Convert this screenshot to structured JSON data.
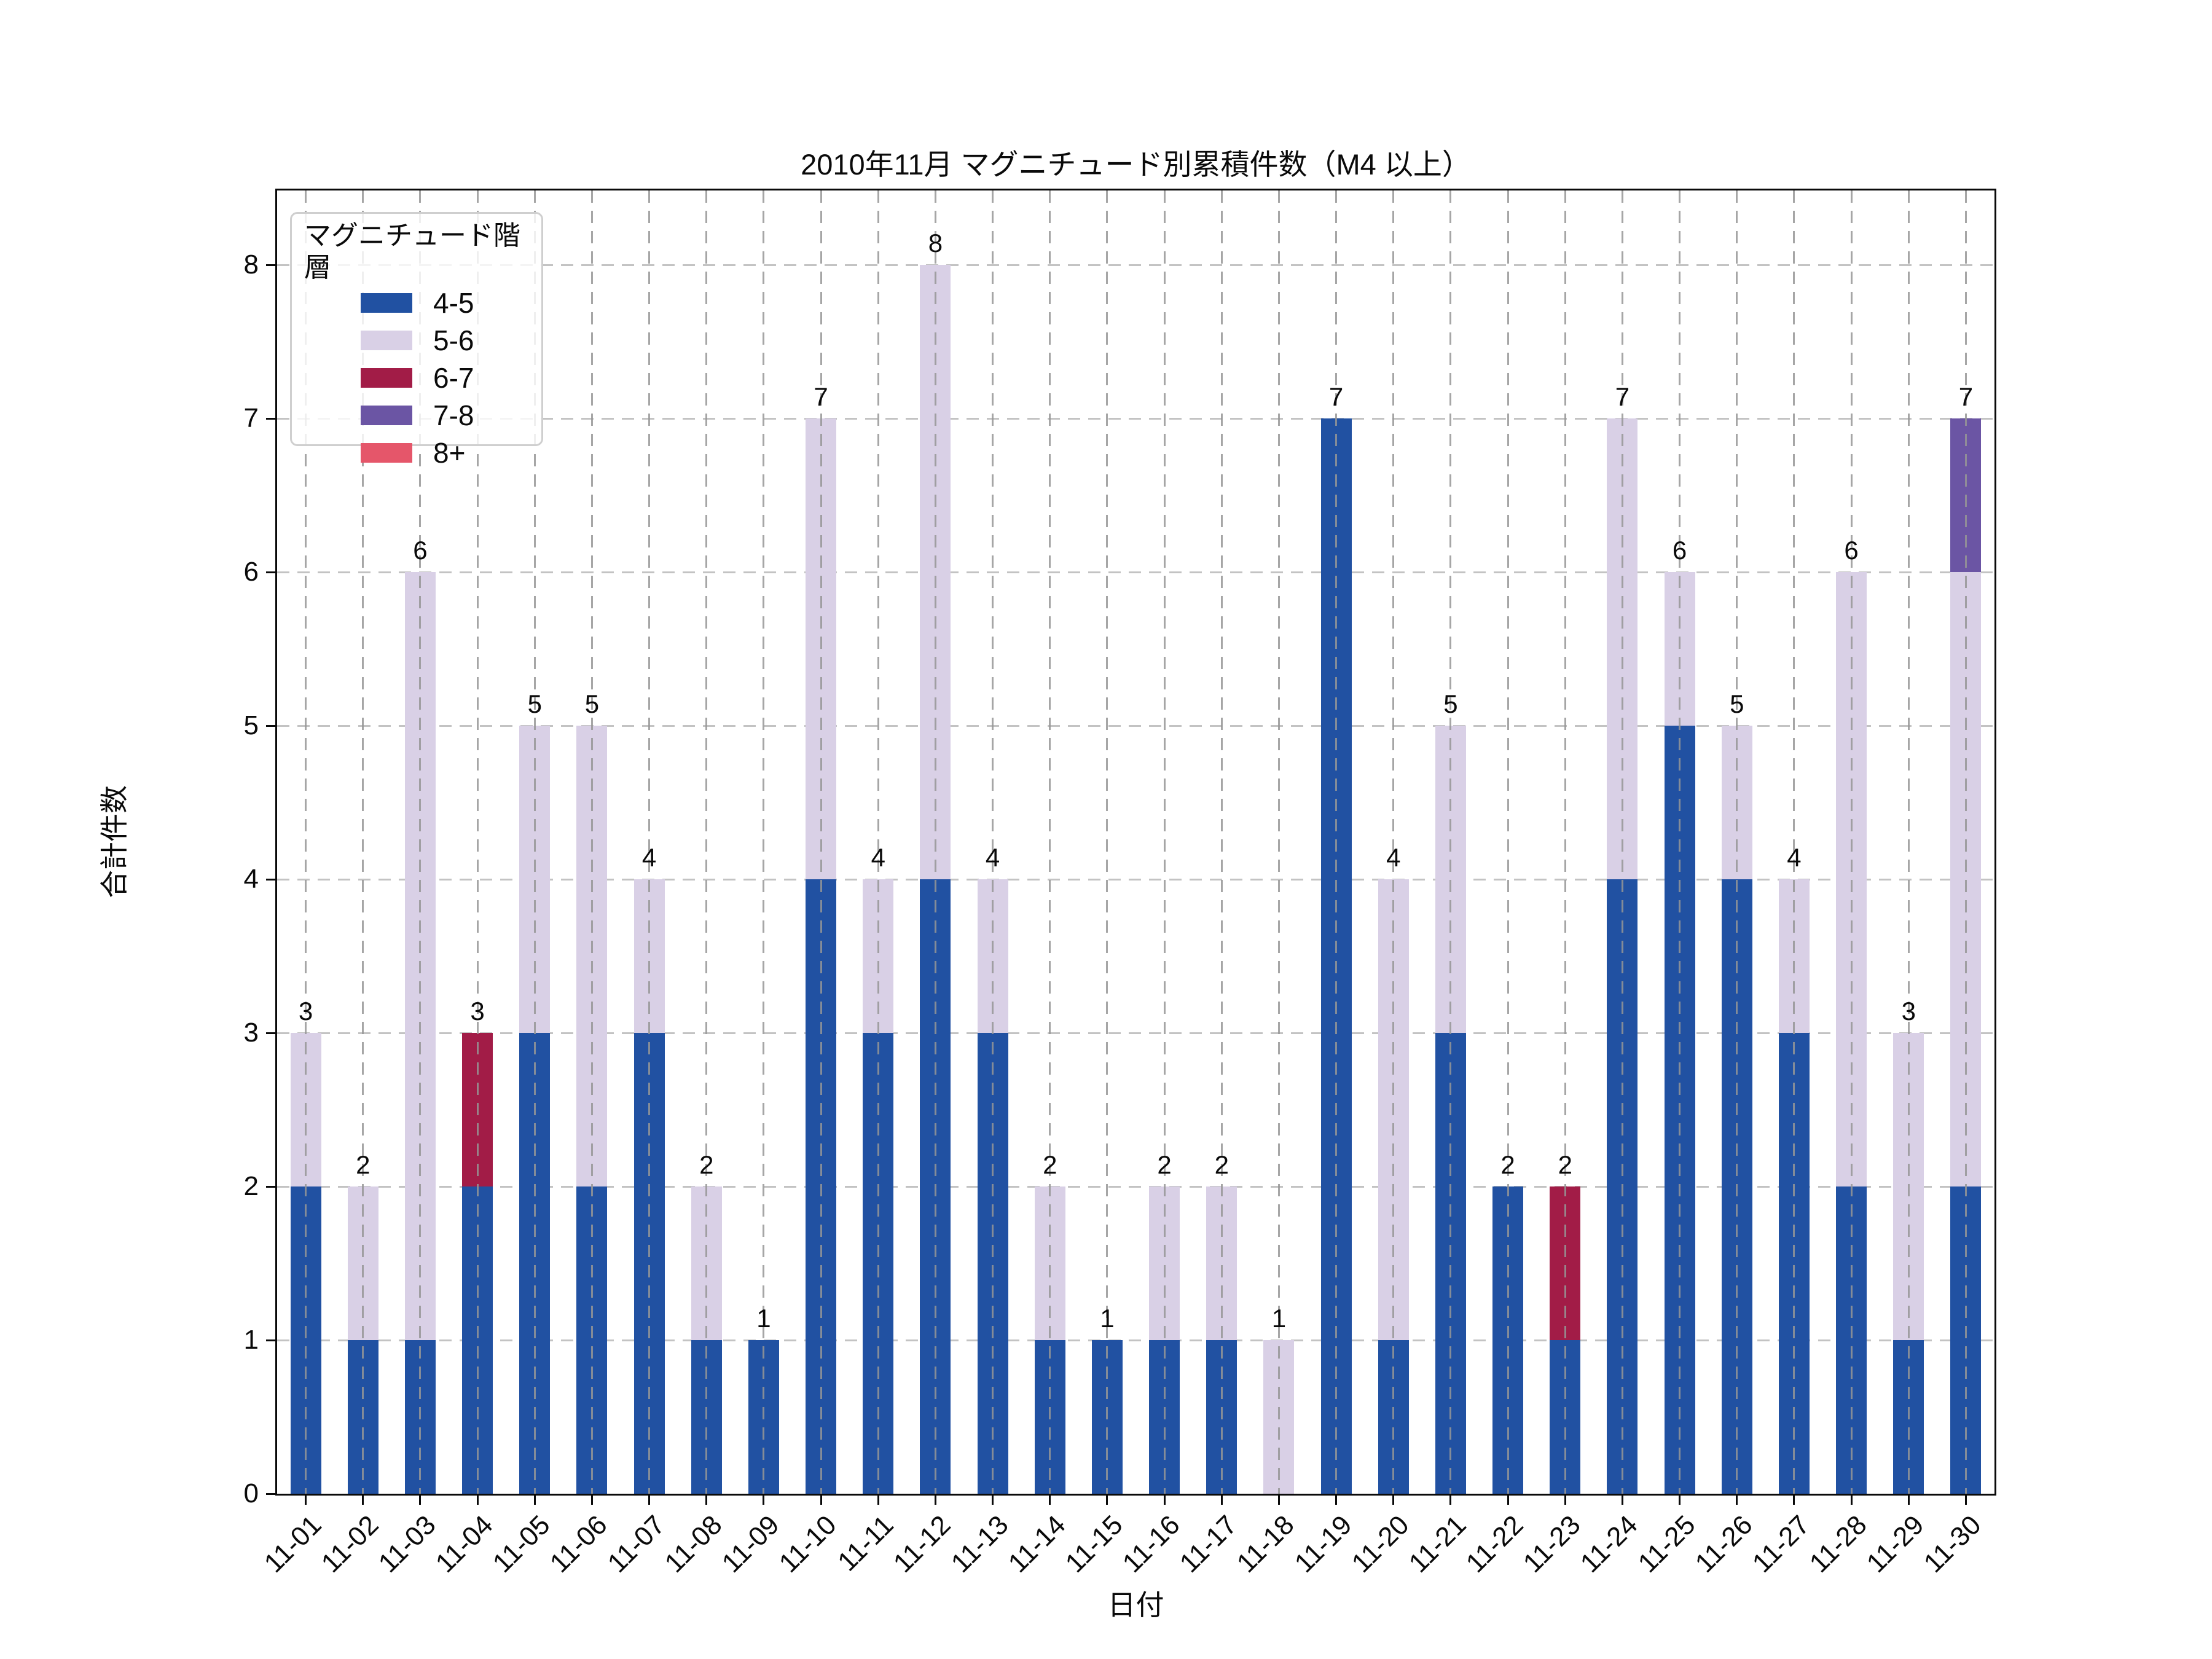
{
  "title": "2010年11月 マグニチュード別累積件数（M4 以上）",
  "axes": {
    "xlabel": "日付",
    "ylabel": "合計件数",
    "yticks": [
      0,
      1,
      2,
      3,
      4,
      5,
      6,
      7,
      8
    ],
    "ylim": [
      0,
      8.48
    ],
    "grid": "dashed"
  },
  "legend": {
    "title": "マグニチュード階層",
    "position": "upper left",
    "entries": [
      {
        "label": "4-5",
        "color": "#2151a2"
      },
      {
        "label": "5-6",
        "color": "#d9d0e6"
      },
      {
        "label": "6-7",
        "color": "#a21c47"
      },
      {
        "label": "7-8",
        "color": "#6b55a4"
      },
      {
        "label": "8+",
        "color": "#e5566a"
      }
    ]
  },
  "chart_data": {
    "type": "bar",
    "stacked": true,
    "title": "2010年11月 マグニチュード別累積件数（M4 以上）",
    "xlabel": "日付",
    "ylabel": "合計件数",
    "ylim": [
      0,
      8.48
    ],
    "grid": "dashed",
    "legend_position": "upper left",
    "categories": [
      "11-01",
      "11-02",
      "11-03",
      "11-04",
      "11-05",
      "11-06",
      "11-07",
      "11-08",
      "11-09",
      "11-10",
      "11-11",
      "11-12",
      "11-13",
      "11-14",
      "11-15",
      "11-16",
      "11-17",
      "11-18",
      "11-19",
      "11-20",
      "11-21",
      "11-22",
      "11-23",
      "11-24",
      "11-25",
      "11-26",
      "11-27",
      "11-28",
      "11-29",
      "11-30"
    ],
    "series": [
      {
        "name": "4-5",
        "color": "#2151a2",
        "values": [
          2,
          1,
          1,
          2,
          3,
          2,
          3,
          1,
          1,
          4,
          3,
          4,
          3,
          1,
          1,
          1,
          1,
          0,
          7,
          1,
          3,
          2,
          1,
          4,
          5,
          4,
          3,
          2,
          1,
          2
        ]
      },
      {
        "name": "5-6",
        "color": "#d9d0e6",
        "values": [
          1,
          1,
          5,
          0,
          2,
          3,
          1,
          1,
          0,
          3,
          1,
          4,
          1,
          1,
          0,
          1,
          1,
          1,
          0,
          3,
          2,
          0,
          0,
          3,
          1,
          1,
          1,
          4,
          2,
          4
        ]
      },
      {
        "name": "6-7",
        "color": "#a21c47",
        "values": [
          0,
          0,
          0,
          1,
          0,
          0,
          0,
          0,
          0,
          0,
          0,
          0,
          0,
          0,
          0,
          0,
          0,
          0,
          0,
          0,
          0,
          0,
          1,
          0,
          0,
          0,
          0,
          0,
          0,
          0
        ]
      },
      {
        "name": "7-8",
        "color": "#6b55a4",
        "values": [
          0,
          0,
          0,
          0,
          0,
          0,
          0,
          0,
          0,
          0,
          0,
          0,
          0,
          0,
          0,
          0,
          0,
          0,
          0,
          0,
          0,
          0,
          0,
          0,
          0,
          0,
          0,
          0,
          0,
          1
        ]
      },
      {
        "name": "8+",
        "color": "#e5566a",
        "values": [
          0,
          0,
          0,
          0,
          0,
          0,
          0,
          0,
          0,
          0,
          0,
          0,
          0,
          0,
          0,
          0,
          0,
          0,
          0,
          0,
          0,
          0,
          0,
          0,
          0,
          0,
          0,
          0,
          0,
          0
        ]
      }
    ],
    "totals": [
      3,
      2,
      6,
      3,
      5,
      5,
      4,
      2,
      1,
      7,
      4,
      8,
      4,
      2,
      1,
      2,
      2,
      1,
      7,
      4,
      5,
      2,
      2,
      7,
      6,
      5,
      4,
      6,
      3,
      7
    ]
  }
}
